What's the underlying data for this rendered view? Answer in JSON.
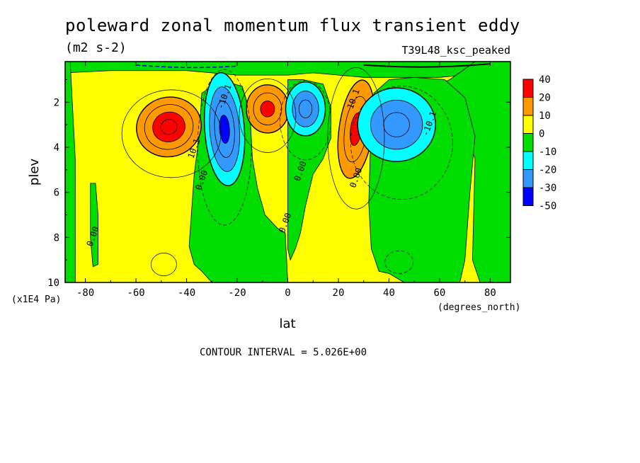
{
  "chart_data": {
    "type": "heatmap",
    "title": "poleward zonal momentum flux transient eddy",
    "units": "(m2 s-2)",
    "experiment": "T39L48_ksc_peaked",
    "xlabel": "lat",
    "x_units": "(degrees_north)",
    "ylabel": "plev",
    "y_units": "(x1E4 Pa)",
    "xlim": [
      -88,
      88
    ],
    "ylim": [
      10,
      0.2
    ],
    "x_ticks": [
      -80,
      -60,
      -40,
      -20,
      0,
      20,
      40,
      60,
      80
    ],
    "y_ticks": [
      2,
      4,
      6,
      8,
      10
    ],
    "contour_interval_text": "CONTOUR INTERVAL = 5.026E+00",
    "legend": {
      "placement": "right",
      "labels": [
        "40",
        "20",
        "10",
        "0",
        "-10",
        "-20",
        "-30",
        "-50"
      ],
      "colors": [
        "#ff0000",
        "#ff9900",
        "#ffff00",
        "#00dd00",
        "#00ffff",
        "#3399ff",
        "#0000ff"
      ]
    },
    "extrema": [
      {
        "lat": -47,
        "plev": 3.1,
        "value": 42,
        "sign": "positive"
      },
      {
        "lat": -25,
        "plev": 3.2,
        "value": -32,
        "sign": "negative"
      },
      {
        "lat": -8,
        "plev": 2.3,
        "value": 38,
        "sign": "positive"
      },
      {
        "lat": 7,
        "plev": 2.3,
        "value": -22,
        "sign": "negative"
      },
      {
        "lat": 27,
        "plev": 3.2,
        "value": 40,
        "sign": "positive"
      },
      {
        "lat": 43,
        "plev": 3.0,
        "value": -33,
        "sign": "negative"
      }
    ],
    "contour_labels": [
      {
        "text": "10.1",
        "lat": -36,
        "plev": 4.1
      },
      {
        "text": "0.00",
        "lat": -33,
        "plev": 5.5
      },
      {
        "text": "-10.1",
        "lat": -24,
        "plev": 1.8
      },
      {
        "text": "0.00",
        "lat": 6,
        "plev": 5.1
      },
      {
        "text": "0.00",
        "lat": 0,
        "plev": 7.4
      },
      {
        "text": "10.1",
        "lat": 27,
        "plev": 1.9
      },
      {
        "text": "0.00",
        "lat": 28,
        "plev": 5.4
      },
      {
        "text": "-10.1",
        "lat": 57,
        "plev": 3.0
      },
      {
        "text": "0.00",
        "lat": -76,
        "plev": 8.0
      }
    ]
  }
}
